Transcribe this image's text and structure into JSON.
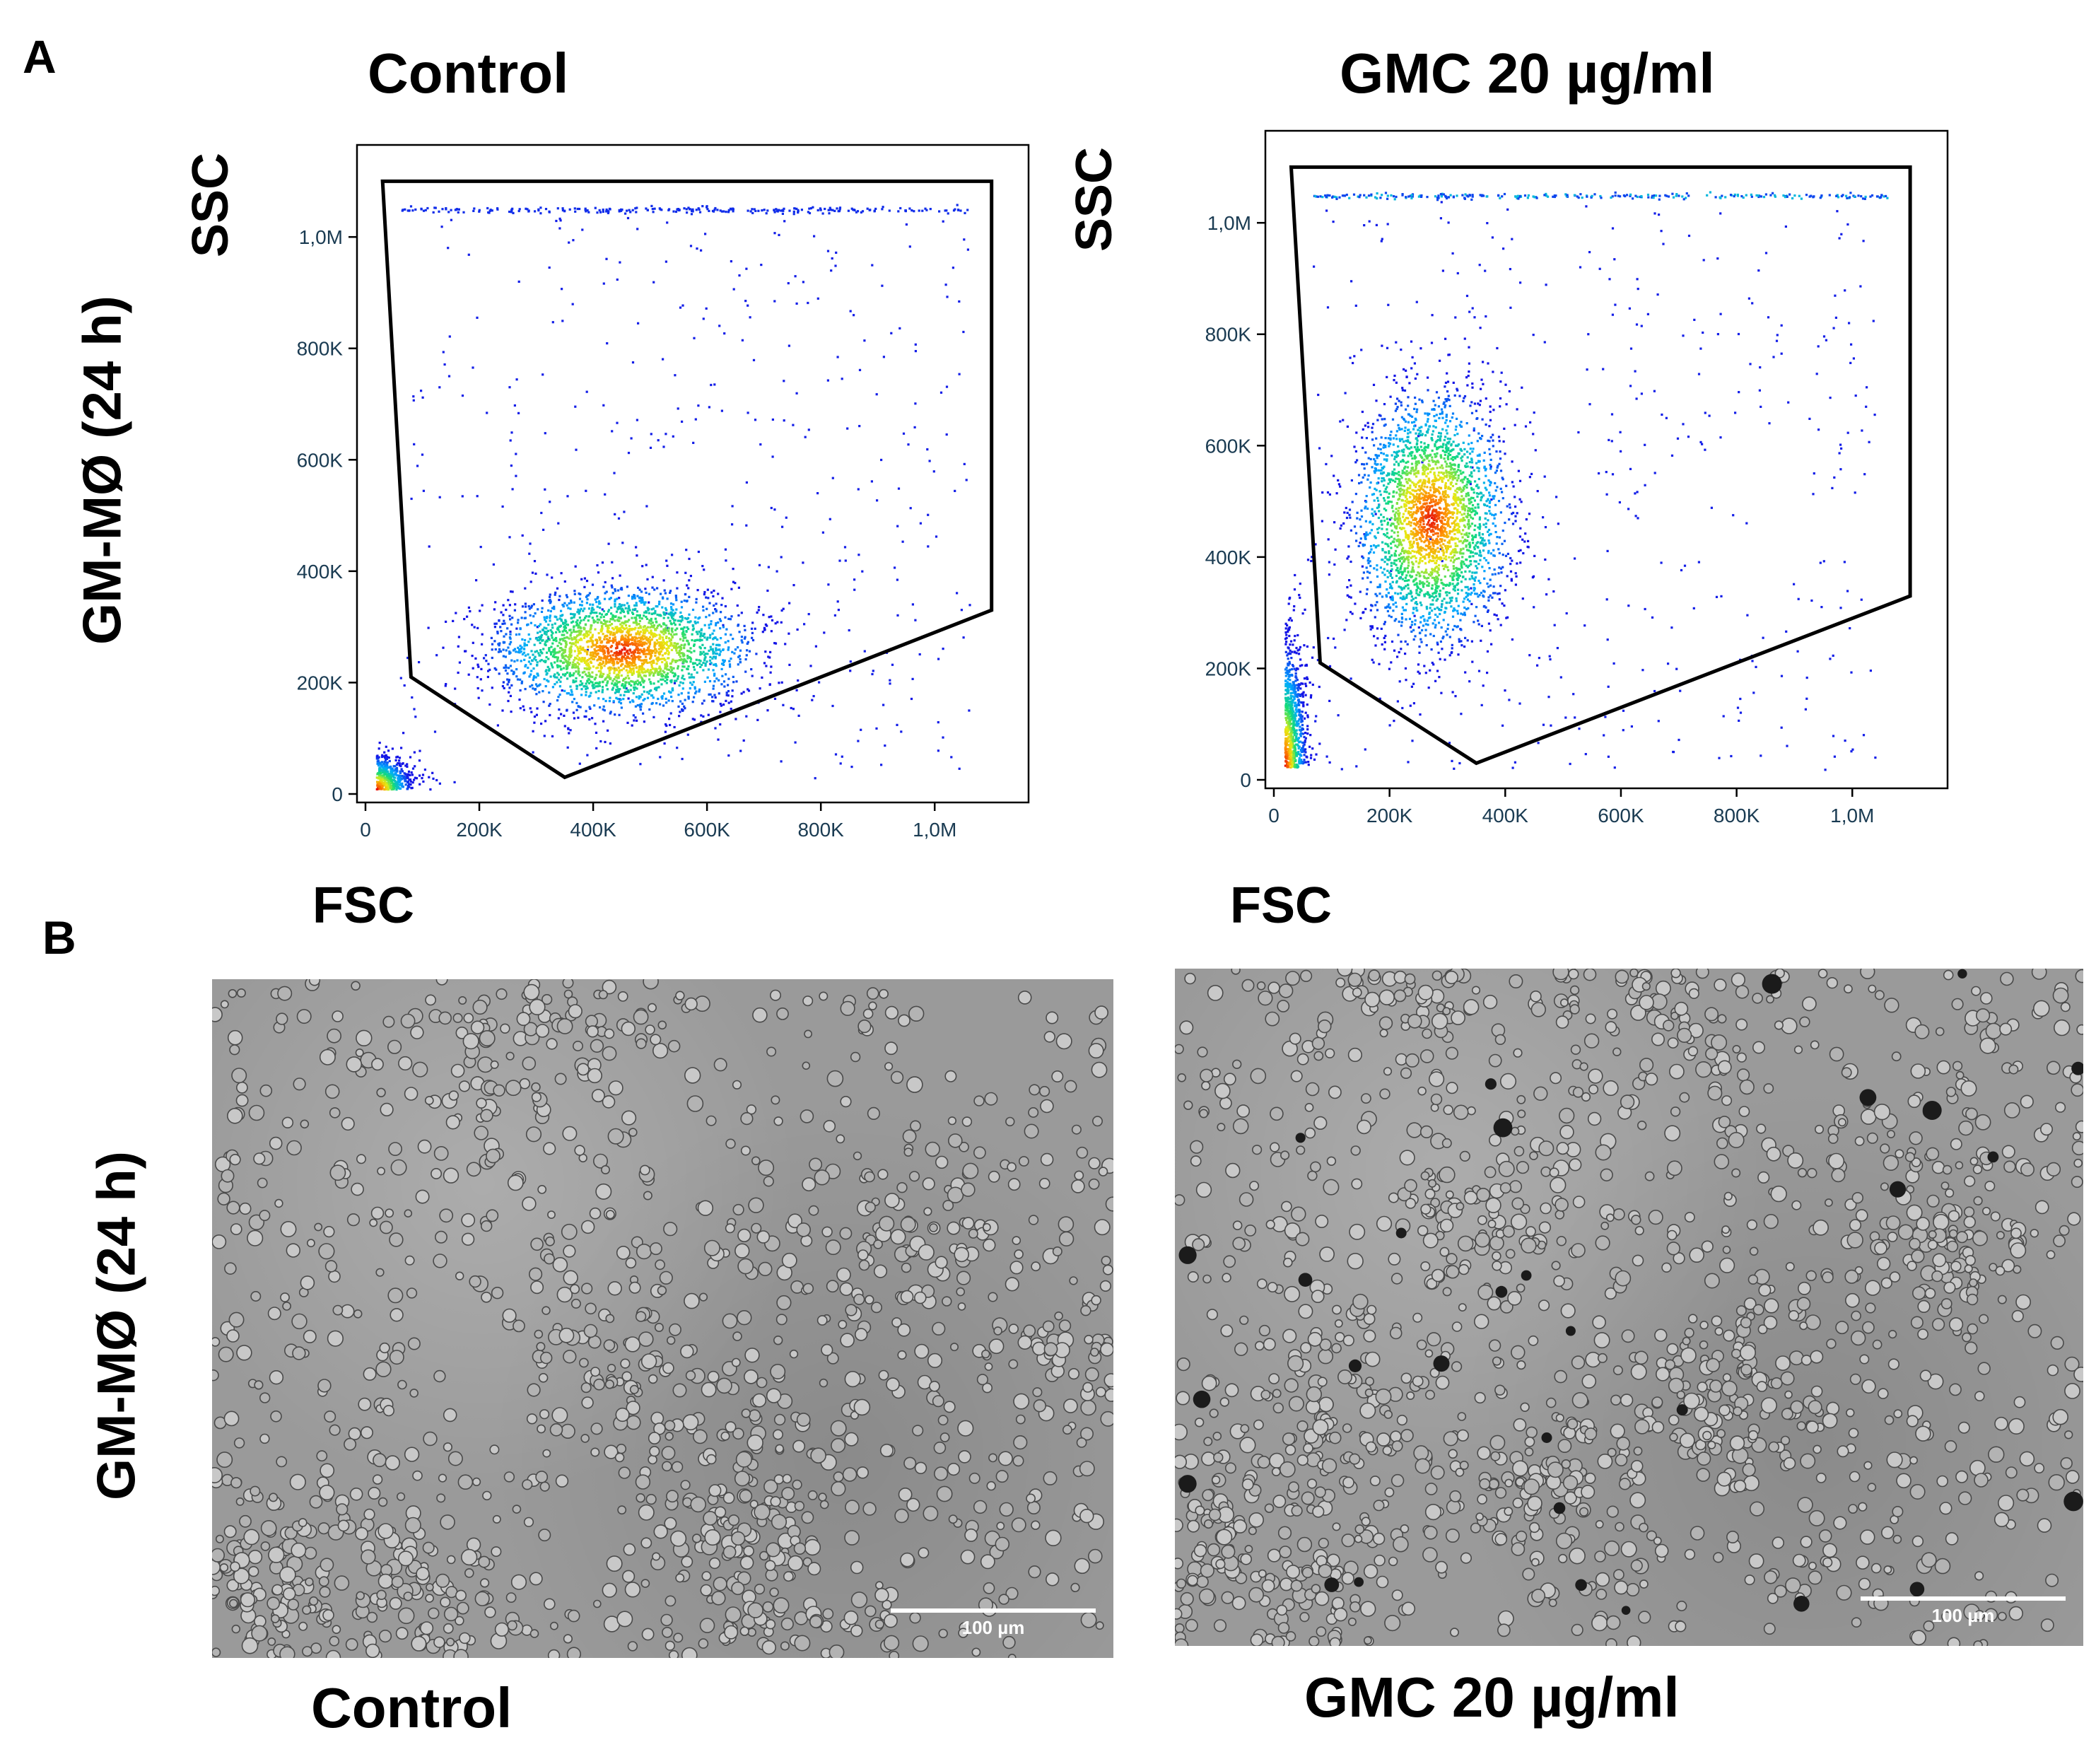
{
  "figure": {
    "panel_a_letter": "A",
    "panel_b_letter": "B",
    "row_label_a": "GM-MØ (24 h)",
    "row_label_b": "GM-MØ (24 h)",
    "colors": {
      "background": "#ffffff",
      "gate": "#000000",
      "tick_text": "#1a3b52"
    }
  },
  "flow_plots": [
    {
      "title": "Control",
      "y_axis_name": "SSC",
      "x_axis_name": "FSC",
      "y_ticks": [
        "0",
        "200K",
        "400K",
        "600K",
        "800K",
        "1,0M"
      ],
      "x_ticks": [
        "0",
        "200K",
        "400K",
        "600K",
        "800K",
        "1,0M"
      ]
    },
    {
      "title": "GMC 20 µg/ml",
      "y_axis_name": "SSC",
      "x_axis_name": "FSC",
      "y_ticks": [
        "0",
        "200K",
        "400K",
        "600K",
        "800K",
        "1,0M"
      ],
      "x_ticks": [
        "0",
        "200K",
        "400K",
        "600K",
        "800K",
        "1,0M"
      ]
    }
  ],
  "chart_data": [
    {
      "type": "scatter",
      "title": "Control",
      "xlabel": "FSC",
      "ylabel": "SSC",
      "xlim": [
        0,
        1150000
      ],
      "ylim": [
        0,
        1150000
      ],
      "x_ticks": [
        0,
        200000,
        400000,
        600000,
        800000,
        1000000
      ],
      "y_ticks": [
        0,
        200000,
        400000,
        600000,
        800000,
        1000000
      ],
      "main_population_center": [
        450000,
        260000
      ],
      "debris_center": [
        30000,
        25000
      ],
      "saturation_ssc": 1050000,
      "gate_polygon": [
        [
          30000,
          1100000
        ],
        [
          1100000,
          1100000
        ],
        [
          1100000,
          330000
        ],
        [
          350000,
          30000
        ],
        [
          80000,
          210000
        ]
      ]
    },
    {
      "type": "scatter",
      "title": "GMC 20 µg/ml",
      "xlabel": "FSC",
      "ylabel": "SSC",
      "xlim": [
        0,
        1150000
      ],
      "ylim": [
        0,
        1150000
      ],
      "x_ticks": [
        0,
        200000,
        400000,
        600000,
        800000,
        1000000
      ],
      "y_ticks": [
        0,
        200000,
        400000,
        600000,
        800000,
        1000000
      ],
      "main_population_center": [
        270000,
        470000
      ],
      "debris_center": [
        30000,
        60000
      ],
      "saturation_ssc": 1050000,
      "gate_polygon": [
        [
          30000,
          1100000
        ],
        [
          1100000,
          1100000
        ],
        [
          1100000,
          330000
        ],
        [
          350000,
          30000
        ],
        [
          80000,
          210000
        ]
      ]
    }
  ],
  "micrographs": [
    {
      "caption": "Control",
      "scale_bar_label": "100 µm"
    },
    {
      "caption": "GMC 20 µg/ml",
      "scale_bar_label": "100 µm"
    }
  ]
}
